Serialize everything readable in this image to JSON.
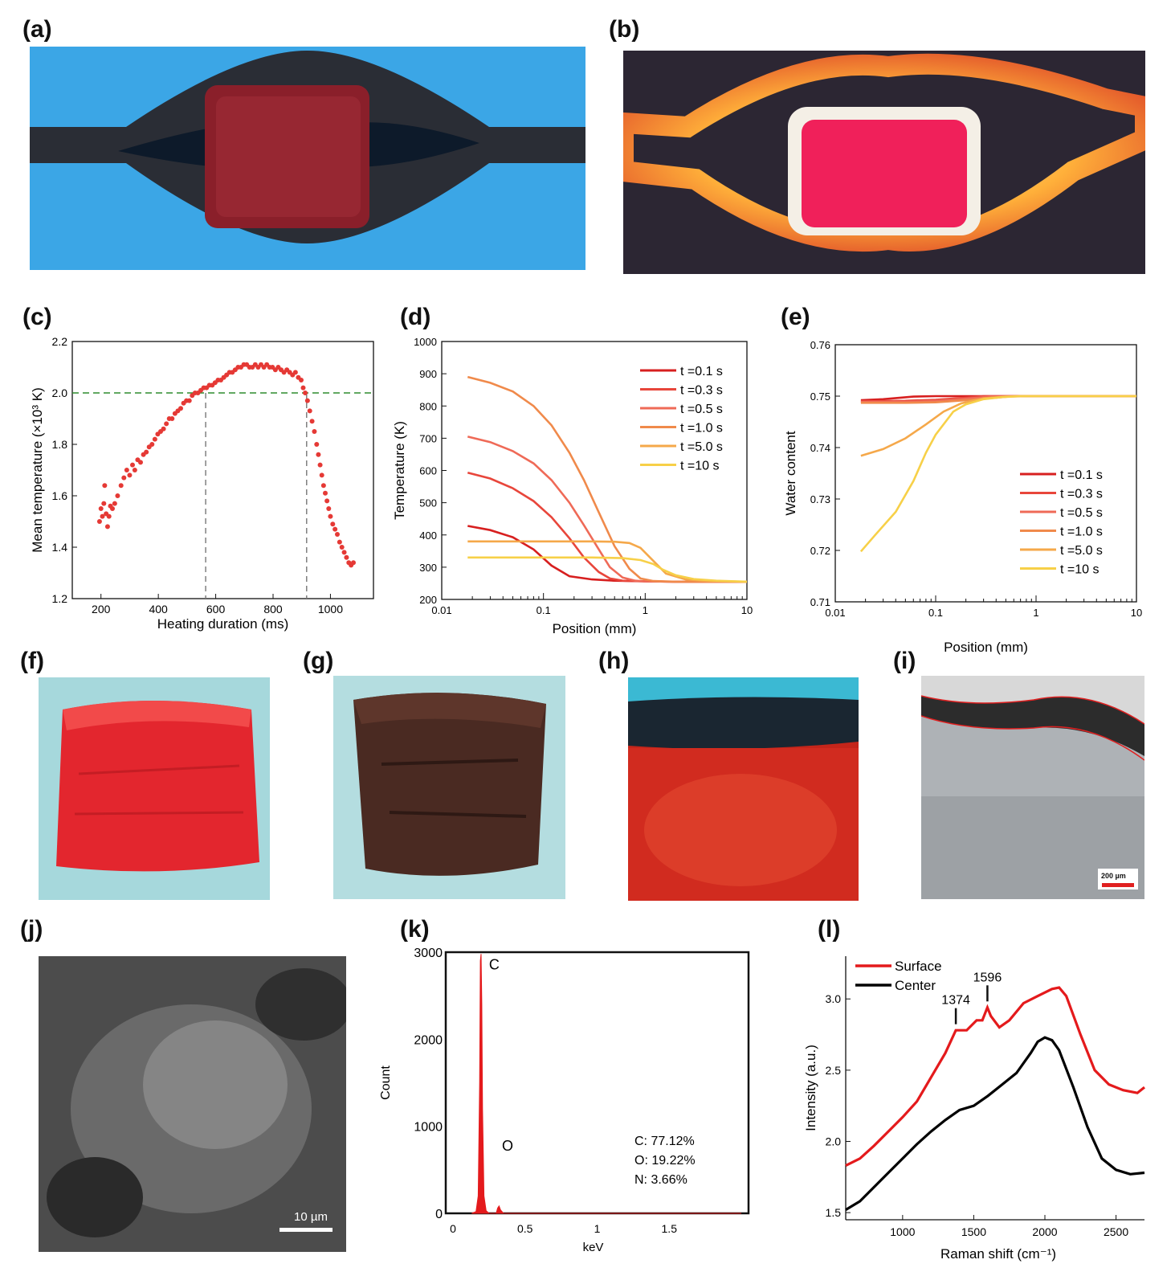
{
  "panels": {
    "a": "(a)",
    "b": "(b)",
    "c": "(c)",
    "d": "(d)",
    "e": "(e)",
    "f": "(f)",
    "g": "(g)",
    "h": "(h)",
    "i": "(i)",
    "j": "(j)",
    "k": "(k)",
    "l": "(l)"
  },
  "images": {
    "i_scalebar": "200 µm",
    "j_scalebar": "10 µm"
  },
  "colors": {
    "t01": "#d71f1f",
    "t03": "#e8463b",
    "t05": "#ef6a57",
    "t10": "#f08a4b",
    "t50": "#f5a84a",
    "t100": "#f7d048",
    "scatter": "#e53935",
    "threshold": "#2e8b2e",
    "surface": "#e41a1c",
    "center": "#000000"
  },
  "chart_data": [
    {
      "id": "c",
      "type": "scatter",
      "xlabel": "Heating duration (ms)",
      "ylabel": "Mean temperature (×10³ K)",
      "xlim": [
        100,
        1150
      ],
      "ylim": [
        1.2,
        2.2
      ],
      "xticks": [
        200,
        400,
        600,
        800,
        1000
      ],
      "yticks": [
        1.2,
        1.4,
        1.6,
        1.8,
        2.0,
        2.2
      ],
      "threshold_y": 2.0,
      "vlines": [
        565,
        917
      ],
      "points": [
        [
          195,
          1.5
        ],
        [
          200,
          1.55
        ],
        [
          205,
          1.52
        ],
        [
          210,
          1.57
        ],
        [
          213,
          1.64
        ],
        [
          218,
          1.53
        ],
        [
          223,
          1.48
        ],
        [
          228,
          1.52
        ],
        [
          233,
          1.56
        ],
        [
          240,
          1.55
        ],
        [
          248,
          1.57
        ],
        [
          258,
          1.6
        ],
        [
          270,
          1.64
        ],
        [
          280,
          1.67
        ],
        [
          290,
          1.7
        ],
        [
          300,
          1.68
        ],
        [
          310,
          1.72
        ],
        [
          318,
          1.7
        ],
        [
          328,
          1.74
        ],
        [
          338,
          1.73
        ],
        [
          348,
          1.76
        ],
        [
          358,
          1.77
        ],
        [
          368,
          1.79
        ],
        [
          378,
          1.8
        ],
        [
          388,
          1.82
        ],
        [
          398,
          1.84
        ],
        [
          408,
          1.85
        ],
        [
          418,
          1.86
        ],
        [
          428,
          1.88
        ],
        [
          438,
          1.9
        ],
        [
          448,
          1.9
        ],
        [
          458,
          1.92
        ],
        [
          468,
          1.93
        ],
        [
          478,
          1.94
        ],
        [
          488,
          1.96
        ],
        [
          498,
          1.97
        ],
        [
          508,
          1.97
        ],
        [
          518,
          1.99
        ],
        [
          528,
          2.0
        ],
        [
          538,
          2.0
        ],
        [
          548,
          2.01
        ],
        [
          558,
          2.02
        ],
        [
          568,
          2.02
        ],
        [
          578,
          2.03
        ],
        [
          588,
          2.03
        ],
        [
          598,
          2.04
        ],
        [
          608,
          2.05
        ],
        [
          618,
          2.05
        ],
        [
          628,
          2.06
        ],
        [
          638,
          2.07
        ],
        [
          648,
          2.08
        ],
        [
          658,
          2.08
        ],
        [
          668,
          2.09
        ],
        [
          678,
          2.1
        ],
        [
          688,
          2.1
        ],
        [
          698,
          2.11
        ],
        [
          708,
          2.11
        ],
        [
          718,
          2.1
        ],
        [
          728,
          2.1
        ],
        [
          738,
          2.11
        ],
        [
          748,
          2.1
        ],
        [
          758,
          2.11
        ],
        [
          768,
          2.1
        ],
        [
          778,
          2.11
        ],
        [
          788,
          2.1
        ],
        [
          798,
          2.1
        ],
        [
          808,
          2.09
        ],
        [
          818,
          2.1
        ],
        [
          828,
          2.09
        ],
        [
          838,
          2.08
        ],
        [
          848,
          2.09
        ],
        [
          858,
          2.08
        ],
        [
          868,
          2.07
        ],
        [
          878,
          2.08
        ],
        [
          888,
          2.06
        ],
        [
          898,
          2.05
        ],
        [
          905,
          2.02
        ],
        [
          912,
          2.0
        ],
        [
          920,
          1.97
        ],
        [
          928,
          1.93
        ],
        [
          936,
          1.89
        ],
        [
          944,
          1.85
        ],
        [
          952,
          1.8
        ],
        [
          958,
          1.76
        ],
        [
          964,
          1.72
        ],
        [
          970,
          1.68
        ],
        [
          976,
          1.64
        ],
        [
          982,
          1.61
        ],
        [
          988,
          1.58
        ],
        [
          994,
          1.55
        ],
        [
          1000,
          1.52
        ],
        [
          1008,
          1.49
        ],
        [
          1016,
          1.47
        ],
        [
          1024,
          1.45
        ],
        [
          1032,
          1.42
        ],
        [
          1040,
          1.4
        ],
        [
          1048,
          1.38
        ],
        [
          1056,
          1.36
        ],
        [
          1064,
          1.34
        ],
        [
          1072,
          1.33
        ],
        [
          1080,
          1.34
        ]
      ]
    },
    {
      "id": "d",
      "type": "line",
      "xlabel": "Position (mm)",
      "ylabel": "Temperature (K)",
      "xscale": "log",
      "xlim": [
        0.01,
        10
      ],
      "ylim": [
        200,
        1000
      ],
      "xticks": [
        0.01,
        0.1,
        1,
        10
      ],
      "yticks": [
        200,
        300,
        400,
        500,
        600,
        700,
        800,
        900,
        1000
      ],
      "series": [
        {
          "name": "t =0.1 s",
          "x": [
            0.018,
            0.03,
            0.05,
            0.08,
            0.12,
            0.18,
            0.3,
            0.5,
            1,
            2,
            5,
            10
          ],
          "y": [
            428,
            415,
            393,
            355,
            305,
            272,
            262,
            258,
            256,
            255,
            255,
            255
          ]
        },
        {
          "name": "t =0.3 s",
          "x": [
            0.018,
            0.03,
            0.05,
            0.08,
            0.12,
            0.18,
            0.25,
            0.35,
            0.45,
            0.6,
            1,
            2,
            10
          ],
          "y": [
            593,
            575,
            545,
            505,
            455,
            390,
            330,
            285,
            265,
            258,
            256,
            255,
            255
          ]
        },
        {
          "name": "t =0.5 s",
          "x": [
            0.018,
            0.03,
            0.05,
            0.08,
            0.12,
            0.18,
            0.25,
            0.35,
            0.45,
            0.6,
            0.8,
            1,
            2,
            10
          ],
          "y": [
            705,
            688,
            660,
            622,
            570,
            500,
            430,
            355,
            300,
            268,
            258,
            256,
            255,
            255
          ]
        },
        {
          "name": "t =1.0 s",
          "x": [
            0.018,
            0.03,
            0.05,
            0.08,
            0.12,
            0.18,
            0.25,
            0.35,
            0.5,
            0.7,
            0.9,
            1.2,
            2,
            10
          ],
          "y": [
            890,
            872,
            845,
            800,
            740,
            655,
            570,
            470,
            365,
            295,
            265,
            257,
            255,
            255
          ]
        },
        {
          "name": "t =5.0 s",
          "x": [
            0.018,
            0.05,
            0.1,
            0.3,
            0.5,
            0.7,
            0.9,
            1.2,
            1.6,
            2.5,
            4,
            10
          ],
          "y": [
            380,
            380,
            380,
            380,
            379,
            375,
            360,
            320,
            280,
            262,
            257,
            255
          ]
        },
        {
          "name": "t =10 s",
          "x": [
            0.018,
            0.05,
            0.1,
            0.3,
            0.6,
            0.9,
            1.2,
            1.5,
            2,
            3,
            5,
            10
          ],
          "y": [
            330,
            330,
            330,
            330,
            328,
            322,
            310,
            292,
            275,
            263,
            258,
            255
          ]
        }
      ]
    },
    {
      "id": "e",
      "type": "line",
      "xlabel": "Position (mm)",
      "ylabel": "Water content",
      "xscale": "log",
      "xlim": [
        0.01,
        10
      ],
      "ylim": [
        0.71,
        0.76
      ],
      "xticks": [
        0.01,
        0.1,
        1,
        10
      ],
      "yticks": [
        0.71,
        0.72,
        0.73,
        0.74,
        0.75,
        0.76
      ],
      "series": [
        {
          "name": "t =0.1 s",
          "x": [
            0.018,
            0.03,
            0.06,
            0.1,
            0.2,
            1,
            10
          ],
          "y": [
            0.7492,
            0.7494,
            0.7499,
            0.75,
            0.75,
            0.75,
            0.75
          ]
        },
        {
          "name": "t =0.3 s",
          "x": [
            0.018,
            0.05,
            0.1,
            0.2,
            0.3,
            1,
            10
          ],
          "y": [
            0.749,
            0.7491,
            0.7493,
            0.7497,
            0.75,
            0.75,
            0.75
          ]
        },
        {
          "name": "t =0.5 s",
          "x": [
            0.018,
            0.05,
            0.1,
            0.2,
            0.35,
            1,
            10
          ],
          "y": [
            0.7489,
            0.7489,
            0.7491,
            0.7495,
            0.7499,
            0.75,
            0.75
          ]
        },
        {
          "name": "t =1.0 s",
          "x": [
            0.018,
            0.05,
            0.1,
            0.2,
            0.4,
            0.6,
            1,
            10
          ],
          "y": [
            0.7487,
            0.7487,
            0.7488,
            0.7492,
            0.7497,
            0.75,
            0.75,
            0.75
          ]
        },
        {
          "name": "t =5.0 s",
          "x": [
            0.018,
            0.03,
            0.05,
            0.08,
            0.12,
            0.18,
            0.3,
            0.5,
            0.8,
            1,
            10
          ],
          "y": [
            0.7384,
            0.7397,
            0.7418,
            0.7445,
            0.747,
            0.7486,
            0.7496,
            0.7499,
            0.75,
            0.75,
            0.75
          ]
        },
        {
          "name": "t =10 s",
          "x": [
            0.018,
            0.025,
            0.04,
            0.06,
            0.08,
            0.1,
            0.15,
            0.2,
            0.3,
            0.45,
            0.7,
            1,
            10
          ],
          "y": [
            0.7198,
            0.723,
            0.7275,
            0.7335,
            0.739,
            0.7425,
            0.747,
            0.7484,
            0.7494,
            0.7498,
            0.75,
            0.75,
            0.75
          ]
        }
      ]
    },
    {
      "id": "k",
      "type": "area",
      "xlabel": "keV",
      "ylabel": "Count",
      "xlim": [
        -0.05,
        2.05
      ],
      "ylim": [
        0,
        3000
      ],
      "xticks": [
        0,
        0.5,
        1,
        1.5
      ],
      "xticklabels": [
        "0",
        "0.5",
        "1",
        "1.5"
      ],
      "yticks": [
        0,
        1000,
        2000,
        3000
      ],
      "x": [
        0.13,
        0.16,
        0.175,
        0.185,
        0.19,
        0.195,
        0.2,
        0.205,
        0.215,
        0.23,
        0.25,
        0.3,
        0.31,
        0.32,
        0.33,
        0.35,
        2.0
      ],
      "y": [
        0,
        20,
        200,
        1500,
        2900,
        2980,
        2400,
        1200,
        200,
        30,
        0,
        0,
        60,
        85,
        40,
        0,
        0
      ],
      "annotations": [
        "C",
        "O"
      ],
      "composition": [
        "C: 77.12%",
        "O: 19.22%",
        "N: 3.66%"
      ]
    },
    {
      "id": "l",
      "type": "line",
      "xlabel": "Raman shift (cm⁻¹)",
      "ylabel": "Intensity (a.u.)",
      "xlim": [
        600,
        2700
      ],
      "ylim": [
        1.45,
        3.3
      ],
      "xticks": [
        1000,
        1500,
        2000,
        2500
      ],
      "yticks": [
        1.5,
        2.0,
        2.5,
        3.0
      ],
      "series": [
        {
          "name": "Surface",
          "x": [
            600,
            700,
            800,
            900,
            1000,
            1100,
            1200,
            1300,
            1374,
            1450,
            1520,
            1560,
            1596,
            1620,
            1680,
            1750,
            1850,
            1950,
            2050,
            2100,
            2150,
            2250,
            2350,
            2450,
            2550,
            2650,
            2700
          ],
          "y": [
            1.83,
            1.88,
            1.97,
            2.07,
            2.17,
            2.28,
            2.45,
            2.62,
            2.78,
            2.78,
            2.85,
            2.85,
            2.94,
            2.88,
            2.8,
            2.85,
            2.97,
            3.02,
            3.07,
            3.08,
            3.02,
            2.75,
            2.5,
            2.4,
            2.36,
            2.34,
            2.38
          ]
        },
        {
          "name": "Center",
          "x": [
            600,
            700,
            800,
            900,
            1000,
            1100,
            1200,
            1300,
            1400,
            1500,
            1600,
            1700,
            1800,
            1900,
            1950,
            2000,
            2050,
            2100,
            2200,
            2300,
            2400,
            2500,
            2600,
            2700
          ],
          "y": [
            1.52,
            1.58,
            1.68,
            1.78,
            1.88,
            1.98,
            2.07,
            2.15,
            2.22,
            2.25,
            2.32,
            2.4,
            2.48,
            2.62,
            2.7,
            2.73,
            2.71,
            2.64,
            2.38,
            2.1,
            1.88,
            1.8,
            1.77,
            1.78
          ]
        }
      ],
      "annotations": [
        "1374",
        "1596"
      ]
    }
  ]
}
